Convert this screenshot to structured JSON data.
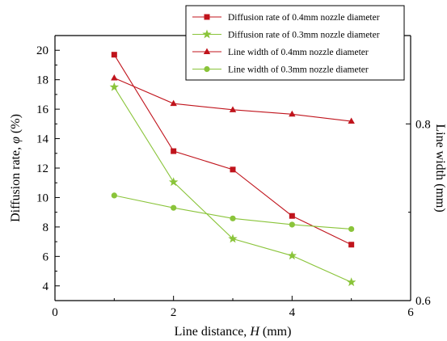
{
  "chart_data": {
    "type": "line",
    "xlabel": "Line distance, ",
    "xlabel_var": "H",
    "xlabel_unit": " (mm)",
    "ylabel": "Diffusion rate, ",
    "ylabel_var": "φ",
    "ylabel_unit": " (%)",
    "y2label": "Line width (mm)",
    "xlim": [
      0,
      6
    ],
    "ylim": [
      3,
      21
    ],
    "y2lim": [
      0.6,
      0.9
    ],
    "xticks": [
      0,
      2,
      4,
      6
    ],
    "yticks": [
      4,
      6,
      8,
      10,
      12,
      14,
      16,
      18,
      20
    ],
    "y2ticks": [
      0.6,
      0.8
    ],
    "legend_position": "top-right",
    "series": [
      {
        "name": "Diffusion rate of 0.4mm nozzle diameter",
        "axis": "left",
        "marker": "square",
        "color": "#c0141c",
        "x": [
          1,
          2,
          3,
          4,
          5
        ],
        "values": [
          19.7,
          13.15,
          11.9,
          8.75,
          6.8
        ]
      },
      {
        "name": "Diffusion rate of 0.3mm nozzle diameter",
        "axis": "left",
        "marker": "star",
        "color": "#8ac43a",
        "x": [
          1,
          2,
          3,
          4,
          5
        ],
        "values": [
          17.5,
          11.05,
          7.2,
          6.05,
          4.25
        ]
      },
      {
        "name": "Line width of 0.4mm nozzle diameter",
        "axis": "right",
        "marker": "triangle",
        "color": "#c0141c",
        "x": [
          1,
          2,
          3,
          4,
          5
        ],
        "values": [
          0.852,
          0.823,
          0.816,
          0.811,
          0.803
        ]
      },
      {
        "name": "Line width of 0.3mm nozzle diameter",
        "axis": "right",
        "marker": "circle",
        "color": "#8ac43a",
        "x": [
          1,
          2,
          3,
          4,
          5
        ],
        "values": [
          0.719,
          0.705,
          0.693,
          0.686,
          0.681
        ]
      }
    ]
  }
}
